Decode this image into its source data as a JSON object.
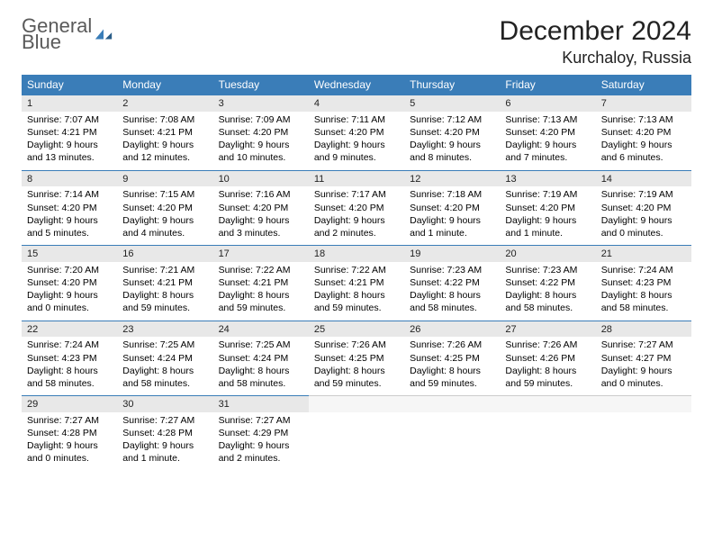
{
  "logo": {
    "word1": "General",
    "word2": "Blue"
  },
  "header": {
    "title": "December 2024",
    "location": "Kurchaloy, Russia"
  },
  "colors": {
    "header_bg": "#3a7db8",
    "header_text": "#ffffff",
    "daynum_bg": "#e8e8e8",
    "daynum_border": "#3a7db8",
    "page_bg": "#ffffff",
    "text": "#000000",
    "logo_gray": "#5a5a5a",
    "logo_blue": "#3a7db8"
  },
  "dayNames": [
    "Sunday",
    "Monday",
    "Tuesday",
    "Wednesday",
    "Thursday",
    "Friday",
    "Saturday"
  ],
  "weeks": [
    [
      {
        "n": "1",
        "sr": "Sunrise: 7:07 AM",
        "ss": "Sunset: 4:21 PM",
        "dl": "Daylight: 9 hours and 13 minutes."
      },
      {
        "n": "2",
        "sr": "Sunrise: 7:08 AM",
        "ss": "Sunset: 4:21 PM",
        "dl": "Daylight: 9 hours and 12 minutes."
      },
      {
        "n": "3",
        "sr": "Sunrise: 7:09 AM",
        "ss": "Sunset: 4:20 PM",
        "dl": "Daylight: 9 hours and 10 minutes."
      },
      {
        "n": "4",
        "sr": "Sunrise: 7:11 AM",
        "ss": "Sunset: 4:20 PM",
        "dl": "Daylight: 9 hours and 9 minutes."
      },
      {
        "n": "5",
        "sr": "Sunrise: 7:12 AM",
        "ss": "Sunset: 4:20 PM",
        "dl": "Daylight: 9 hours and 8 minutes."
      },
      {
        "n": "6",
        "sr": "Sunrise: 7:13 AM",
        "ss": "Sunset: 4:20 PM",
        "dl": "Daylight: 9 hours and 7 minutes."
      },
      {
        "n": "7",
        "sr": "Sunrise: 7:13 AM",
        "ss": "Sunset: 4:20 PM",
        "dl": "Daylight: 9 hours and 6 minutes."
      }
    ],
    [
      {
        "n": "8",
        "sr": "Sunrise: 7:14 AM",
        "ss": "Sunset: 4:20 PM",
        "dl": "Daylight: 9 hours and 5 minutes."
      },
      {
        "n": "9",
        "sr": "Sunrise: 7:15 AM",
        "ss": "Sunset: 4:20 PM",
        "dl": "Daylight: 9 hours and 4 minutes."
      },
      {
        "n": "10",
        "sr": "Sunrise: 7:16 AM",
        "ss": "Sunset: 4:20 PM",
        "dl": "Daylight: 9 hours and 3 minutes."
      },
      {
        "n": "11",
        "sr": "Sunrise: 7:17 AM",
        "ss": "Sunset: 4:20 PM",
        "dl": "Daylight: 9 hours and 2 minutes."
      },
      {
        "n": "12",
        "sr": "Sunrise: 7:18 AM",
        "ss": "Sunset: 4:20 PM",
        "dl": "Daylight: 9 hours and 1 minute."
      },
      {
        "n": "13",
        "sr": "Sunrise: 7:19 AM",
        "ss": "Sunset: 4:20 PM",
        "dl": "Daylight: 9 hours and 1 minute."
      },
      {
        "n": "14",
        "sr": "Sunrise: 7:19 AM",
        "ss": "Sunset: 4:20 PM",
        "dl": "Daylight: 9 hours and 0 minutes."
      }
    ],
    [
      {
        "n": "15",
        "sr": "Sunrise: 7:20 AM",
        "ss": "Sunset: 4:20 PM",
        "dl": "Daylight: 9 hours and 0 minutes."
      },
      {
        "n": "16",
        "sr": "Sunrise: 7:21 AM",
        "ss": "Sunset: 4:21 PM",
        "dl": "Daylight: 8 hours and 59 minutes."
      },
      {
        "n": "17",
        "sr": "Sunrise: 7:22 AM",
        "ss": "Sunset: 4:21 PM",
        "dl": "Daylight: 8 hours and 59 minutes."
      },
      {
        "n": "18",
        "sr": "Sunrise: 7:22 AM",
        "ss": "Sunset: 4:21 PM",
        "dl": "Daylight: 8 hours and 59 minutes."
      },
      {
        "n": "19",
        "sr": "Sunrise: 7:23 AM",
        "ss": "Sunset: 4:22 PM",
        "dl": "Daylight: 8 hours and 58 minutes."
      },
      {
        "n": "20",
        "sr": "Sunrise: 7:23 AM",
        "ss": "Sunset: 4:22 PM",
        "dl": "Daylight: 8 hours and 58 minutes."
      },
      {
        "n": "21",
        "sr": "Sunrise: 7:24 AM",
        "ss": "Sunset: 4:23 PM",
        "dl": "Daylight: 8 hours and 58 minutes."
      }
    ],
    [
      {
        "n": "22",
        "sr": "Sunrise: 7:24 AM",
        "ss": "Sunset: 4:23 PM",
        "dl": "Daylight: 8 hours and 58 minutes."
      },
      {
        "n": "23",
        "sr": "Sunrise: 7:25 AM",
        "ss": "Sunset: 4:24 PM",
        "dl": "Daylight: 8 hours and 58 minutes."
      },
      {
        "n": "24",
        "sr": "Sunrise: 7:25 AM",
        "ss": "Sunset: 4:24 PM",
        "dl": "Daylight: 8 hours and 58 minutes."
      },
      {
        "n": "25",
        "sr": "Sunrise: 7:26 AM",
        "ss": "Sunset: 4:25 PM",
        "dl": "Daylight: 8 hours and 59 minutes."
      },
      {
        "n": "26",
        "sr": "Sunrise: 7:26 AM",
        "ss": "Sunset: 4:25 PM",
        "dl": "Daylight: 8 hours and 59 minutes."
      },
      {
        "n": "27",
        "sr": "Sunrise: 7:26 AM",
        "ss": "Sunset: 4:26 PM",
        "dl": "Daylight: 8 hours and 59 minutes."
      },
      {
        "n": "28",
        "sr": "Sunrise: 7:27 AM",
        "ss": "Sunset: 4:27 PM",
        "dl": "Daylight: 9 hours and 0 minutes."
      }
    ],
    [
      {
        "n": "29",
        "sr": "Sunrise: 7:27 AM",
        "ss": "Sunset: 4:28 PM",
        "dl": "Daylight: 9 hours and 0 minutes."
      },
      {
        "n": "30",
        "sr": "Sunrise: 7:27 AM",
        "ss": "Sunset: 4:28 PM",
        "dl": "Daylight: 9 hours and 1 minute."
      },
      {
        "n": "31",
        "sr": "Sunrise: 7:27 AM",
        "ss": "Sunset: 4:29 PM",
        "dl": "Daylight: 9 hours and 2 minutes."
      },
      null,
      null,
      null,
      null
    ]
  ]
}
